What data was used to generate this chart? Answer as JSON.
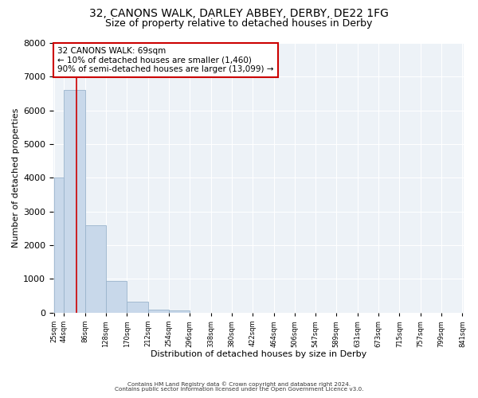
{
  "title1": "32, CANONS WALK, DARLEY ABBEY, DERBY, DE22 1FG",
  "title2": "Size of property relative to detached houses in Derby",
  "xlabel": "Distribution of detached houses by size in Derby",
  "ylabel": "Number of detached properties",
  "bar_values": [
    4000,
    6600,
    2600,
    950,
    330,
    100,
    70,
    0,
    0,
    0,
    0,
    0,
    0,
    0,
    0,
    0,
    0,
    0,
    0,
    0
  ],
  "bin_edges": [
    25,
    44,
    86,
    128,
    170,
    212,
    254,
    296,
    338,
    380,
    422,
    464,
    506,
    547,
    589,
    631,
    673,
    715,
    757,
    799,
    841
  ],
  "x_tick_labels": [
    "25sqm",
    "44sqm",
    "86sqm",
    "128sqm",
    "170sqm",
    "212sqm",
    "254sqm",
    "296sqm",
    "338sqm",
    "380sqm",
    "422sqm",
    "464sqm",
    "506sqm",
    "547sqm",
    "589sqm",
    "631sqm",
    "673sqm",
    "715sqm",
    "757sqm",
    "799sqm",
    "841sqm"
  ],
  "bar_color": "#c8d8ea",
  "bar_edgecolor": "#9ab4cc",
  "vline_x": 69,
  "vline_color": "#cc0000",
  "annotation_text": "32 CANONS WALK: 69sqm\n← 10% of detached houses are smaller (1,460)\n90% of semi-detached houses are larger (13,099) →",
  "annotation_box_color": "#cc0000",
  "ylim": [
    0,
    8000
  ],
  "yticks": [
    0,
    1000,
    2000,
    3000,
    4000,
    5000,
    6000,
    7000,
    8000
  ],
  "background_color": "#edf2f7",
  "footer_line1": "Contains HM Land Registry data © Crown copyright and database right 2024.",
  "footer_line2": "Contains public sector information licensed under the Open Government Licence v3.0.",
  "title1_fontsize": 10,
  "title2_fontsize": 9,
  "ann_fontsize": 7.5
}
